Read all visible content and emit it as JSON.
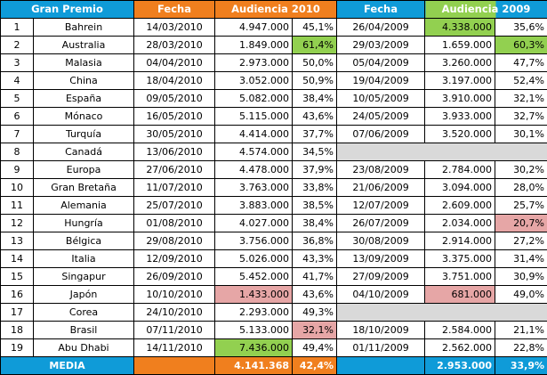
{
  "headers": {
    "gp": "Gran Premio",
    "fecha2010": "Fecha",
    "aud2010": "Audiencia 2010",
    "fecha2009": "Fecha",
    "aud2009": "Audiencia 2009"
  },
  "rows": [
    {
      "n": "1",
      "gp": "Bahrein",
      "f10": "14/03/2010",
      "a10": "4.947.000",
      "p10": "45,1%",
      "f09": "26/04/2009",
      "a09": "4.338.000",
      "p09": "35,6%"
    },
    {
      "n": "2",
      "gp": "Australia",
      "f10": "28/03/2010",
      "a10": "1.849.000",
      "p10": "61,4%",
      "f09": "29/03/2009",
      "a09": "1.659.000",
      "p09": "60,3%"
    },
    {
      "n": "3",
      "gp": "Malasia",
      "f10": "04/04/2010",
      "a10": "2.973.000",
      "p10": "50,0%",
      "f09": "05/04/2009",
      "a09": "3.260.000",
      "p09": "47,7%"
    },
    {
      "n": "4",
      "gp": "China",
      "f10": "18/04/2010",
      "a10": "3.052.000",
      "p10": "50,9%",
      "f09": "19/04/2009",
      "a09": "3.197.000",
      "p09": "52,4%"
    },
    {
      "n": "5",
      "gp": "España",
      "f10": "09/05/2010",
      "a10": "5.082.000",
      "p10": "38,4%",
      "f09": "10/05/2009",
      "a09": "3.910.000",
      "p09": "32,1%"
    },
    {
      "n": "6",
      "gp": "Mónaco",
      "f10": "16/05/2010",
      "a10": "5.115.000",
      "p10": "43,6%",
      "f09": "24/05/2009",
      "a09": "3.933.000",
      "p09": "32,7%"
    },
    {
      "n": "7",
      "gp": "Turquía",
      "f10": "30/05/2010",
      "a10": "4.414.000",
      "p10": "37,7%",
      "f09": "07/06/2009",
      "a09": "3.520.000",
      "p09": "30,1%"
    },
    {
      "n": "8",
      "gp": "Canadá",
      "f10": "13/06/2010",
      "a10": "4.574.000",
      "p10": "34,5%",
      "f09": "",
      "a09": "",
      "p09": ""
    },
    {
      "n": "9",
      "gp": "Europa",
      "f10": "27/06/2010",
      "a10": "4.478.000",
      "p10": "37,9%",
      "f09": "23/08/2009",
      "a09": "2.784.000",
      "p09": "30,2%"
    },
    {
      "n": "10",
      "gp": "Gran Bretaña",
      "f10": "11/07/2010",
      "a10": "3.763.000",
      "p10": "33,8%",
      "f09": "21/06/2009",
      "a09": "3.094.000",
      "p09": "28,0%"
    },
    {
      "n": "11",
      "gp": "Alemania",
      "f10": "25/07/2010",
      "a10": "3.883.000",
      "p10": "38,5%",
      "f09": "12/07/2009",
      "a09": "2.609.000",
      "p09": "25,7%"
    },
    {
      "n": "12",
      "gp": "Hungría",
      "f10": "01/08/2010",
      "a10": "4.027.000",
      "p10": "38,4%",
      "f09": "26/07/2009",
      "a09": "2.034.000",
      "p09": "20,7%"
    },
    {
      "n": "13",
      "gp": "Bélgica",
      "f10": "29/08/2010",
      "a10": "3.756.000",
      "p10": "36,8%",
      "f09": "30/08/2009",
      "a09": "2.914.000",
      "p09": "27,2%"
    },
    {
      "n": "14",
      "gp": "Italia",
      "f10": "12/09/2010",
      "a10": "5.026.000",
      "p10": "43,3%",
      "f09": "13/09/2009",
      "a09": "3.375.000",
      "p09": "31,4%"
    },
    {
      "n": "15",
      "gp": "Singapur",
      "f10": "26/09/2010",
      "a10": "5.452.000",
      "p10": "41,7%",
      "f09": "27/09/2009",
      "a09": "3.751.000",
      "p09": "30,9%"
    },
    {
      "n": "16",
      "gp": "Japón",
      "f10": "10/10/2010",
      "a10": "1.433.000",
      "p10": "43,6%",
      "f09": "04/10/2009",
      "a09": "681.000",
      "p09": "49,0%"
    },
    {
      "n": "17",
      "gp": "Corea",
      "f10": "24/10/2010",
      "a10": "2.293.000",
      "p10": "49,3%",
      "f09": "",
      "a09": "",
      "p09": ""
    },
    {
      "n": "18",
      "gp": "Brasil",
      "f10": "07/11/2010",
      "a10": "5.133.000",
      "p10": "32,1%",
      "f09": "18/10/2009",
      "a09": "2.584.000",
      "p09": "21,1%"
    },
    {
      "n": "19",
      "gp": "Abu Dhabi",
      "f10": "14/11/2010",
      "a10": "7.436.000",
      "p10": "49,4%",
      "f09": "01/11/2009",
      "a09": "2.562.000",
      "p09": "22,8%"
    }
  ],
  "footer": {
    "label": "MEDIA",
    "a10": "4.141.368",
    "p10": "42,4%",
    "a09": "2.953.000",
    "p09": "33,9%"
  },
  "highlights": {
    "green": "#92d050",
    "red": "#e6a6a6",
    "gray": "#d9d9d9"
  }
}
